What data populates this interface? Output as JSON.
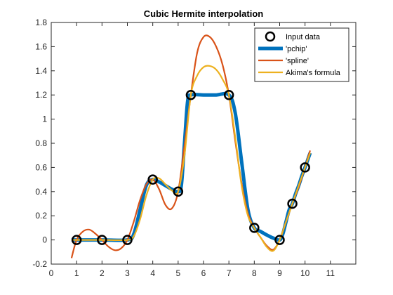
{
  "chart_data": {
    "type": "line",
    "title": "Cubic Hermite interpolation",
    "xlabel": "",
    "ylabel": "",
    "xlim": [
      0,
      12
    ],
    "ylim": [
      -0.2,
      1.8
    ],
    "xticks": [
      0,
      1,
      2,
      3,
      4,
      5,
      6,
      7,
      8,
      9,
      10,
      11
    ],
    "yticks": [
      -0.2,
      0,
      0.2,
      0.4,
      0.6,
      0.8,
      1,
      1.2,
      1.4,
      1.6,
      1.8
    ],
    "grid": false,
    "legend_position": "top-right",
    "input_data": {
      "name": "Input data",
      "x": [
        1,
        2,
        3,
        4,
        5,
        5.5,
        7,
        8,
        9,
        9.5,
        10
      ],
      "y": [
        0,
        0,
        0,
        0.5,
        0.4,
        1.2,
        1.2,
        0.1,
        0,
        0.3,
        0.6
      ],
      "color": "#000000"
    },
    "series": [
      {
        "name": "'pchip'",
        "color": "#0072BD",
        "x": [
          0.8,
          1,
          2,
          3,
          3.25,
          3.5,
          3.75,
          4,
          4.25,
          4.5,
          4.75,
          5,
          5.125,
          5.25,
          5.375,
          5.5,
          6,
          6.5,
          7,
          7.25,
          7.5,
          7.75,
          8,
          8.25,
          8.5,
          8.75,
          9,
          9.125,
          9.25,
          9.375,
          9.5,
          9.625,
          9.75,
          9.875,
          10,
          10.2
        ],
        "y": [
          0,
          0,
          0,
          0,
          0.047,
          0.25,
          0.453,
          0.5,
          0.48,
          0.45,
          0.42,
          0.4,
          0.45,
          0.8,
          1.15,
          1.2,
          1.2,
          1.2,
          1.2,
          1.05,
          0.65,
          0.25,
          0.1,
          0.07,
          0.04,
          0.015,
          0,
          0.05,
          0.15,
          0.25,
          0.3,
          0.38,
          0.45,
          0.53,
          0.6,
          0.72
        ]
      },
      {
        "name": "'spline'",
        "color": "#D95319",
        "x": [
          0.8,
          1,
          1.25,
          1.5,
          1.75,
          2,
          2.25,
          2.5,
          2.75,
          3,
          3.25,
          3.5,
          3.75,
          4,
          4.25,
          4.5,
          4.75,
          5,
          5.25,
          5.5,
          5.75,
          6,
          6.25,
          6.5,
          6.75,
          7,
          7.25,
          7.5,
          7.75,
          8,
          8.25,
          8.5,
          8.75,
          9,
          9.25,
          9.5,
          9.75,
          10,
          10.2
        ],
        "y": [
          -0.15,
          0,
          0.07,
          0.085,
          0.05,
          0,
          -0.055,
          -0.085,
          -0.07,
          0,
          0.15,
          0.33,
          0.46,
          0.5,
          0.42,
          0.29,
          0.26,
          0.4,
          0.78,
          1.2,
          1.55,
          1.68,
          1.68,
          1.6,
          1.45,
          1.2,
          0.82,
          0.47,
          0.22,
          0.1,
          0.02,
          -0.05,
          -0.08,
          0,
          0.15,
          0.3,
          0.44,
          0.6,
          0.74
        ]
      },
      {
        "name": "Akima's formula",
        "color": "#EDB120",
        "x": [
          0.8,
          1,
          2,
          3,
          3.25,
          3.5,
          3.75,
          4,
          4.25,
          4.5,
          4.75,
          5,
          5.25,
          5.5,
          5.75,
          6,
          6.25,
          6.5,
          6.75,
          7,
          7.25,
          7.5,
          7.75,
          8,
          8.25,
          8.5,
          8.75,
          9,
          9.25,
          9.5,
          9.75,
          10,
          10.2
        ],
        "y": [
          0,
          0,
          0,
          0,
          0.03,
          0.17,
          0.37,
          0.5,
          0.51,
          0.46,
          0.41,
          0.4,
          0.7,
          1.2,
          1.36,
          1.43,
          1.44,
          1.41,
          1.33,
          1.2,
          0.85,
          0.45,
          0.2,
          0.1,
          0.02,
          -0.06,
          -0.09,
          0,
          0.15,
          0.3,
          0.45,
          0.6,
          0.72
        ]
      }
    ]
  }
}
